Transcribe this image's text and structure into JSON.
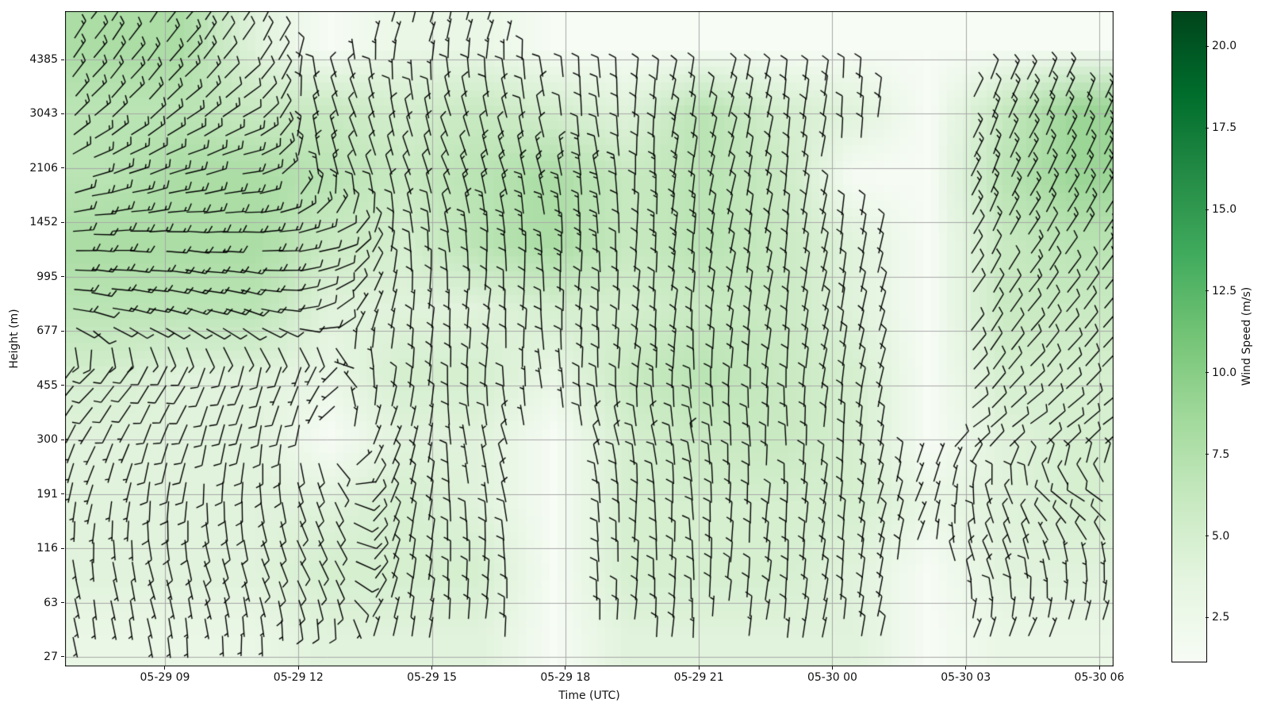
{
  "figure": {
    "background": "#ffffff",
    "plot_border_color": "#000000",
    "gridline_color": "#a8a8a8"
  },
  "chart_data": {
    "type": "heatmap",
    "overlay": "wind-barbs",
    "title": "",
    "xlabel": "Time (UTC)",
    "ylabel": "Height (m)",
    "grid": true,
    "x_tick_labels": [
      "05-29 09",
      "05-29 12",
      "05-29 15",
      "05-29 18",
      "05-29 21",
      "05-30 00",
      "05-30 03",
      "05-30 06"
    ],
    "y_tick_labels": [
      "4385",
      "3043",
      "2106",
      "1452",
      "995",
      "677",
      "455",
      "300",
      "191",
      "116",
      "63",
      "27"
    ],
    "colorbar": {
      "label": "Wind Speed (m/s)",
      "tick_labels": [
        "2.5",
        "5.0",
        "7.5",
        "10.0",
        "12.5",
        "15.0",
        "17.5",
        "20.0"
      ],
      "tick_values": [
        2.5,
        5.0,
        7.5,
        10.0,
        12.5,
        15.0,
        17.5,
        20.0
      ],
      "vmin": 1.2,
      "vmax": 21.05,
      "colormap": "Greens",
      "gradient_stops": [
        [
          0,
          "f7fcf5"
        ],
        [
          0.125,
          "e5f5e0"
        ],
        [
          0.25,
          "c7e9c0"
        ],
        [
          0.375,
          "a1d99b"
        ],
        [
          0.5,
          "74c476"
        ],
        [
          0.625,
          "41ab5d"
        ],
        [
          0.75,
          "238b45"
        ],
        [
          0.875,
          "006d2c"
        ],
        [
          1,
          "00441b"
        ]
      ]
    },
    "field": {
      "comment": "Coarse estimate of plotted wind field read from the figure. rows: top->bottom, cols: left->right. speed_mps 0 = no data (white gap). staff_angle_deg = on-screen barb staff angle, CCW from east.",
      "cols": 14,
      "rows": 10,
      "row_center_height_m": [
        4900,
        3100,
        2080,
        1330,
        820,
        510,
        305,
        180,
        96,
        42
      ],
      "col_center_time_utc": [
        "05-29 07:36",
        "05-29 09:16",
        "05-29 10:57",
        "05-29 12:38",
        "05-29 14:18",
        "05-29 15:59",
        "05-29 17:39",
        "05-29 19:20",
        "05-29 21:01",
        "05-29 22:41",
        "05-30 00:22",
        "05-30 02:02",
        "05-30 03:43",
        "05-30 05:24"
      ],
      "speed_mps": [
        [
          8,
          8,
          4,
          0,
          3,
          3,
          0,
          0,
          0,
          0,
          0,
          0,
          0,
          0
        ],
        [
          7,
          7,
          6,
          6,
          5,
          6,
          5,
          4,
          7,
          5,
          4,
          0,
          6,
          9
        ],
        [
          7,
          8,
          8,
          7,
          6,
          7,
          8,
          6,
          7,
          6,
          0,
          0,
          7,
          9
        ],
        [
          8,
          8,
          8,
          6,
          5,
          7,
          8,
          6,
          7,
          6,
          4,
          0,
          6,
          7
        ],
        [
          7,
          7,
          7,
          4,
          4,
          4,
          5,
          5,
          6,
          6,
          4,
          0,
          6,
          6
        ],
        [
          5,
          4,
          4,
          3,
          5,
          5,
          3,
          6,
          7,
          6,
          5,
          0,
          5,
          5
        ],
        [
          4,
          4,
          4,
          0,
          4,
          4,
          0,
          5,
          6,
          6,
          5,
          0,
          4,
          5
        ],
        [
          4,
          4,
          4,
          4,
          5,
          4,
          0,
          5,
          5,
          5,
          5,
          3,
          4,
          5
        ],
        [
          4,
          4,
          4,
          5,
          5,
          5,
          0,
          5,
          5,
          5,
          4,
          0,
          4,
          4
        ],
        [
          3,
          3,
          3,
          4,
          4,
          4,
          0,
          4,
          4,
          4,
          4,
          0,
          3,
          3
        ]
      ],
      "staff_angle_deg": [
        [
          60,
          55,
          65,
          0,
          80,
          80,
          0,
          0,
          0,
          0,
          0,
          0,
          0,
          0
        ],
        [
          50,
          45,
          40,
          115,
          105,
          110,
          100,
          95,
          80,
          85,
          90,
          0,
          70,
          70
        ],
        [
          25,
          20,
          15,
          110,
          115,
          115,
          105,
          100,
          80,
          85,
          0,
          0,
          70,
          65
        ],
        [
          5,
          0,
          5,
          15,
          100,
          100,
          95,
          95,
          85,
          85,
          85,
          0,
          65,
          60
        ],
        [
          355,
          350,
          350,
          35,
          90,
          90,
          92,
          92,
          85,
          85,
          82,
          0,
          60,
          55
        ],
        [
          230,
          240,
          255,
          240,
          90,
          92,
          100,
          90,
          92,
          90,
          82,
          0,
          55,
          50
        ],
        [
          250,
          255,
          265,
          0,
          75,
          110,
          0,
          110,
          100,
          95,
          90,
          0,
          40,
          40
        ],
        [
          265,
          270,
          280,
          295,
          80,
          105,
          0,
          95,
          95,
          90,
          85,
          70,
          110,
          150
        ],
        [
          285,
          290,
          295,
          300,
          85,
          95,
          0,
          95,
          92,
          90,
          88,
          0,
          115,
          100
        ],
        [
          285,
          280,
          275,
          270,
          85,
          90,
          0,
          90,
          88,
          85,
          85,
          0,
          75,
          70
        ]
      ],
      "barb_convention": "full barb = 10 kt, half barb = 5 kt"
    }
  }
}
